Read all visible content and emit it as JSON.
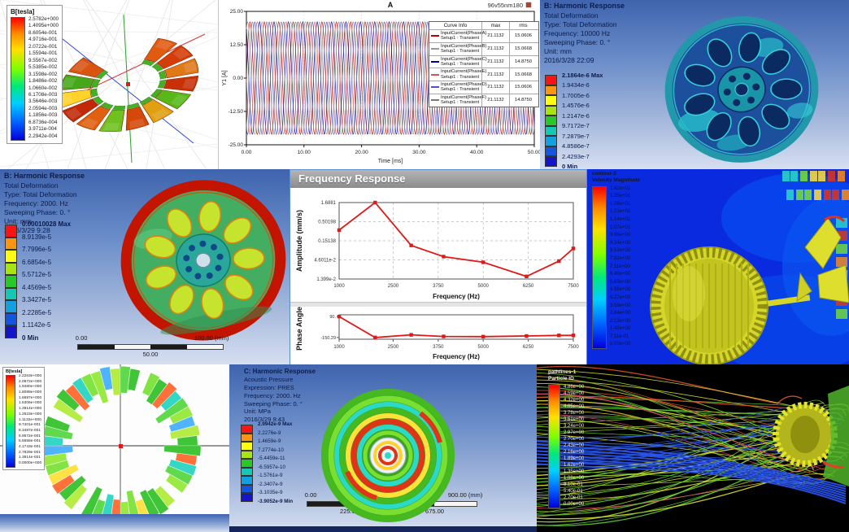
{
  "colors": {
    "ansys_bands": [
      "#fc1414",
      "#fc9414",
      "#fcfc14",
      "#a8e414",
      "#28c828",
      "#14c8b4",
      "#14a0e0",
      "#1455e0",
      "#1414c8"
    ],
    "accent_red": "#e01818",
    "ansys_bg_top": "#3f64ae",
    "cfd_background": "#0a2ae0",
    "pathline_background": "#000000"
  },
  "panels": {
    "maxwell_stator": {
      "legend_title": "B[tesla]",
      "legend_values": [
        "2.5782e+000",
        "1.4095e+000",
        "8.6054e-001",
        "4.9716e-001",
        "2.0722e-001",
        "1.5594e-001",
        "9.5567e-002",
        "5.5385e-002",
        "3.1598e-002",
        "1.8486e-002",
        "1.0660e-002",
        "6.1708e-003",
        "3.5646e-003",
        "2.0594e-003",
        "1.1856e-003",
        "6.8736e-004",
        "3.9711e-004",
        "2.2942e-004"
      ]
    },
    "harmonic_10000": {
      "title": "B: Harmonic Response",
      "lines": [
        "Total Deformation",
        "Type: Total Deformation",
        "Frequency: 10000 Hz",
        "Sweeping Phase: 0. °",
        "Unit: mm",
        "2016/3/28 22:09"
      ],
      "legend": [
        "2.1864e-6 Max",
        "1.9434e-6",
        "1.7005e-6",
        "1.4576e-6",
        "1.2147e-6",
        "9.7172e-7",
        "7.2879e-7",
        "4.8586e-7",
        "2.4293e-7",
        "0 Min"
      ]
    },
    "harmonic_2000": {
      "title": "B: Harmonic Response",
      "lines": [
        "Total Deformation",
        "Type: Total Deformation",
        "Frequency: 2000. Hz",
        "Sweeping Phase: 0. °",
        "Unit: mm",
        "2016/3/29 9:28"
      ],
      "legend": [
        "0.00010028 Max",
        "8.9139e-5",
        "7.7996e-5",
        "6.6854e-5",
        "5.5712e-5",
        "4.4569e-5",
        "3.3427e-5",
        "2.2285e-5",
        "1.1142e-5",
        "0 Min"
      ],
      "ruler": {
        "top": [
          "0.00",
          "100.00 (mm)"
        ],
        "bottom": [
          "50.00"
        ]
      }
    },
    "freq_response": {
      "window_title": "Frequency Response"
    },
    "cfd_fan": {
      "legend_title1": "contour-2",
      "legend_title2": "Velocity Magnitude",
      "legend_values": [
        "1.42e+01",
        "1.35e+01",
        "1.28e+01",
        "1.21e+01",
        "1.14e+01",
        "1.07e+01",
        "9.96e+00",
        "9.24e+00",
        "8.53e+00",
        "7.82e+00",
        "7.11e+00",
        "6.40e+00",
        "5.69e+00",
        "4.98e+00",
        "4.27e+00",
        "3.56e+00",
        "2.84e+00",
        "2.13e+00",
        "1.42e+00",
        "7.11e-01",
        "0.00e+00"
      ]
    },
    "polar_field": {
      "legend_title": "B[tesla]",
      "legend_values": [
        "2.2263e+000",
        "2.0872e+000",
        "1.9480e+000",
        "1.8089e+000",
        "1.6697e+000",
        "1.5306e+000",
        "1.3914e+000",
        "1.2523e+000",
        "1.1132e+000",
        "9.7401e-001",
        "8.3487e-001",
        "6.9572e-001",
        "5.5658e-001",
        "4.1743e-001",
        "2.7829e-001",
        "1.3914e-001",
        "0.0000e+000"
      ]
    },
    "acoustic": {
      "title": "C: Harmonic Response",
      "lines": [
        "Acoustic Pressure",
        "Expression: PRES",
        "Frequency: 2000. Hz",
        "Sweeping Phase: 0. °",
        "Unit: MPa",
        "2016/3/29 9:43"
      ],
      "legend": [
        "2.9942e-9 Max",
        "2.2276e-9",
        "1.4659e-9",
        "7.2774e-10",
        "-5.4459e-11",
        "-6.5957e-10",
        "-1.5761e-9",
        "-2.3407e-9",
        "-3.1035e-9",
        "-3.9052e-9 Min"
      ],
      "ruler": {
        "top": [
          "0.00",
          "450.00",
          "900.00 (mm)"
        ],
        "bottom": [
          "225.00",
          "675.00"
        ]
      }
    },
    "pathlines": {
      "legend_title1": "pathlines-1",
      "legend_title2": "Particle ID",
      "legend_values": [
        "4.86e+00",
        "4.59e+00",
        "4.32e+00",
        "4.05e+00",
        "3.78e+00",
        "3.51e+00",
        "3.24e+00",
        "2.97e+00",
        "2.70e+00",
        "2.43e+00",
        "2.16e+00",
        "1.89e+00",
        "1.62e+00",
        "1.35e+00",
        "1.08e+00",
        "8.10e-01",
        "5.40e-01",
        "2.70e-01",
        "0.00e+00"
      ]
    }
  },
  "chart_data": [
    {
      "id": "input_currents",
      "type": "line",
      "title": "A",
      "corner_label": "96v55nm180",
      "xlabel": "Time [ms]",
      "ylabel": "Y1 [A]",
      "xlim": [
        0,
        50
      ],
      "ylim": [
        -25,
        25
      ],
      "xticks": [
        0,
        10,
        20,
        30,
        40,
        50
      ],
      "xtick_labels": [
        "0.00",
        "10.00",
        "20.00",
        "30.00",
        "40.00",
        "50.00"
      ],
      "yticks": [
        25,
        12.5,
        0,
        -12.5,
        -25
      ],
      "ytick_labels": [
        "25.00",
        "12.50",
        "0.00",
        "-12.50",
        "-25.00"
      ],
      "waveform": "sine",
      "amplitude": 21.1132,
      "period_ms": 2.5,
      "legend_headers": [
        "Curve Info",
        "max",
        "rms"
      ],
      "series": [
        {
          "name": "InputCurrent(PhaseA)",
          "setup": "Setup1 : Transient",
          "max": "21.1132",
          "rms": "15.0606",
          "phase_deg": 0,
          "color": "#c00000"
        },
        {
          "name": "InputCurrent(PhaseB)",
          "setup": "Setup1 : Transient",
          "max": "21.1132",
          "rms": "15.0668",
          "phase_deg": 60,
          "color": "#9a9a9a"
        },
        {
          "name": "InputCurrent(PhaseC)",
          "setup": "Setup1 : Transient",
          "max": "21.1132",
          "rms": "14.8750",
          "phase_deg": 120,
          "color": "#000090"
        },
        {
          "name": "InputCurrent(PhaseE)",
          "setup": "Setup1 : Transient",
          "max": "21.1132",
          "rms": "15.0668",
          "phase_deg": 180,
          "color": "#d05858"
        },
        {
          "name": "InputCurrent(PhaseD)",
          "setup": "Setup1 : Transient",
          "max": "21.1132",
          "rms": "15.0606",
          "phase_deg": 240,
          "color": "#5050c8"
        },
        {
          "name": "InputCurrent(PhaseF)",
          "setup": "Setup1 : Transient",
          "max": "21.1132",
          "rms": "14.8750",
          "phase_deg": 300,
          "color": "#787878"
        }
      ]
    },
    {
      "id": "amplitude_response",
      "type": "line",
      "ylabel": "Amplitude (mm/s)",
      "xlabel": "Frequency (Hz)",
      "yscale": "log",
      "yticks": [
        1.6881,
        0.50198,
        0.15138,
        0.046011,
        0.01399
      ],
      "ytick_labels": [
        "1.6881",
        "0.50198",
        "0.15138",
        "4.6011e-2",
        "1.399e-2"
      ],
      "xticks": [
        1000,
        2500,
        3750,
        5000,
        6250,
        7500
      ],
      "xtick_labels": [
        "1000",
        "2500",
        "3750",
        "5000",
        "6250",
        "7500"
      ],
      "x": [
        1000,
        2000,
        3000,
        3900,
        5000,
        6200,
        7100,
        7500
      ],
      "y": [
        0.3,
        1.6881,
        0.115,
        0.057,
        0.04,
        0.0165,
        0.043,
        0.095
      ],
      "color": "#e01818"
    },
    {
      "id": "phase_response",
      "type": "line",
      "ylabel": "Phase Angle",
      "xlabel": "Frequency (Hz)",
      "ylim": [
        -170,
        110
      ],
      "yticks": [
        90,
        -150.29
      ],
      "ytick_labels": [
        "90.",
        "-150.29"
      ],
      "xticks": [
        1000,
        2500,
        3750,
        5000,
        6250,
        7500
      ],
      "xtick_labels": [
        "1000",
        "2500",
        "3750",
        "5000",
        "6250",
        "7500"
      ],
      "x": [
        1000,
        2000,
        3000,
        3900,
        5000,
        6200,
        7100,
        7500
      ],
      "y": [
        90,
        -150,
        -120,
        -138,
        -140,
        -133,
        -126,
        -126
      ],
      "color": "#e01818"
    }
  ]
}
